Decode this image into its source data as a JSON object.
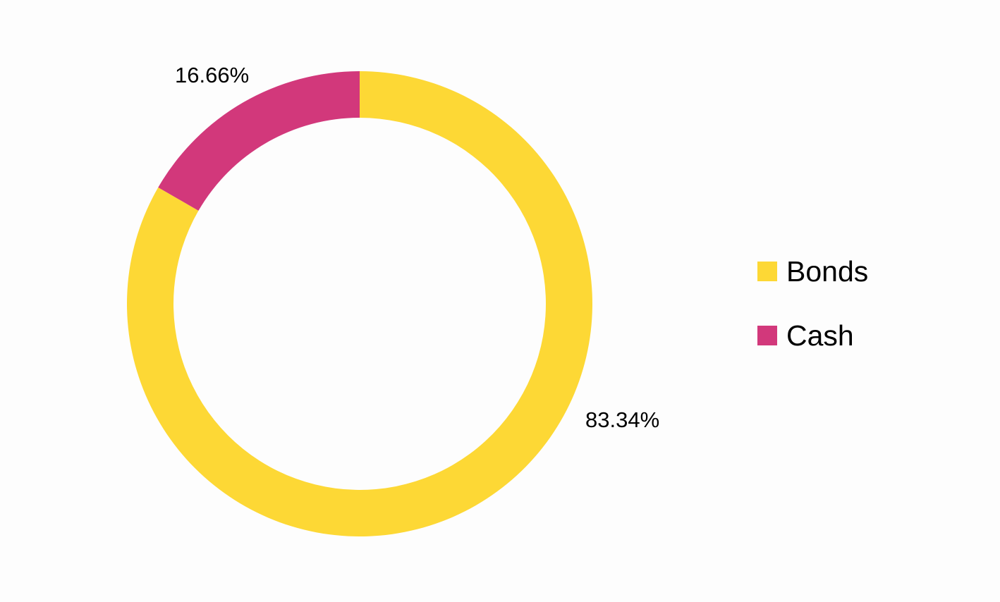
{
  "chart_data": {
    "type": "pie",
    "variant": "donut",
    "title": "",
    "categories": [
      "Bonds",
      "Cash"
    ],
    "values": [
      83.34,
      16.66
    ],
    "unit": "%",
    "colors": [
      "#fdd835",
      "#d2387b"
    ],
    "data_labels": [
      "83.34%",
      "16.66%"
    ],
    "legend": {
      "position": "right",
      "items": [
        {
          "label": "Bonds",
          "color": "#fdd835"
        },
        {
          "label": "Cash",
          "color": "#d2387b"
        }
      ]
    }
  }
}
